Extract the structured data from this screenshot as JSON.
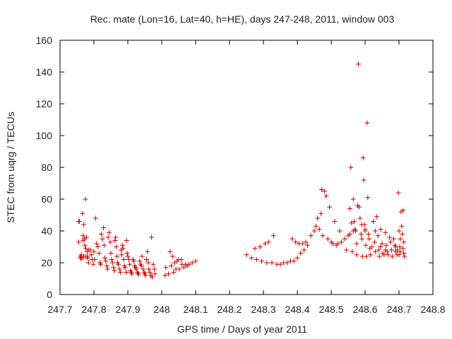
{
  "chart_data": {
    "type": "scatter",
    "title": "Rec. mate (Lon=16, Lat=40, h=HE), days 247-248, 2011, window 003",
    "xlabel": "GPS time / Days of year 2011",
    "ylabel": "STEC from uqrg / TECUs",
    "xlim": [
      247.7,
      248.8
    ],
    "ylim": [
      0,
      160
    ],
    "xticks": [
      247.7,
      247.8,
      247.9,
      248.0,
      248.1,
      248.2,
      248.3,
      248.4,
      248.5,
      248.6,
      248.7,
      248.8
    ],
    "xtick_labels": [
      "247.7",
      "247.8",
      "247.9",
      "248",
      "248.1",
      "248.2",
      "248.3",
      "248.4",
      "248.5",
      "248.6",
      "248.7",
      "248.8"
    ],
    "yticks": [
      0,
      20,
      40,
      60,
      80,
      100,
      120,
      140,
      160
    ],
    "ytick_labels": [
      "0",
      "20",
      "40",
      "60",
      "80",
      "100",
      "120",
      "140",
      "160"
    ],
    "grid": false,
    "marker": "+",
    "color": "#cc0000",
    "series": [
      {
        "points": [
          [
            247.755,
            46
          ],
          [
            247.757,
            46
          ],
          [
            247.76,
            24
          ],
          [
            247.762,
            23
          ],
          [
            247.763,
            25
          ],
          [
            247.766,
            51
          ],
          [
            247.768,
            37
          ],
          [
            247.77,
            44
          ],
          [
            247.755,
            33
          ],
          [
            247.768,
            34
          ],
          [
            247.772,
            35
          ],
          [
            247.775,
            60
          ],
          [
            247.778,
            36
          ],
          [
            247.78,
            27
          ],
          [
            247.782,
            23
          ],
          [
            247.784,
            20
          ],
          [
            247.76,
            23
          ],
          [
            247.765,
            23
          ],
          [
            247.77,
            24
          ],
          [
            247.775,
            24
          ],
          [
            247.78,
            24
          ],
          [
            247.773,
            31
          ],
          [
            247.776,
            29
          ],
          [
            247.785,
            28
          ],
          [
            247.79,
            28
          ],
          [
            247.792,
            25
          ],
          [
            247.795,
            22
          ],
          [
            247.798,
            19
          ],
          [
            247.8,
            27
          ],
          [
            247.802,
            22
          ],
          [
            247.805,
            48
          ],
          [
            247.808,
            32
          ],
          [
            247.812,
            30
          ],
          [
            247.815,
            26
          ],
          [
            247.818,
            20
          ],
          [
            247.82,
            19
          ],
          [
            247.822,
            38
          ],
          [
            247.825,
            35
          ],
          [
            247.828,
            42
          ],
          [
            247.83,
            31
          ],
          [
            247.832,
            23
          ],
          [
            247.835,
            21
          ],
          [
            247.838,
            18
          ],
          [
            247.84,
            16
          ],
          [
            247.842,
            36
          ],
          [
            247.845,
            39
          ],
          [
            247.848,
            33
          ],
          [
            247.85,
            26
          ],
          [
            247.852,
            22
          ],
          [
            247.855,
            20
          ],
          [
            247.858,
            17
          ],
          [
            247.86,
            15
          ],
          [
            247.862,
            34
          ],
          [
            247.864,
            36
          ],
          [
            247.866,
            30
          ],
          [
            247.868,
            24
          ],
          [
            247.87,
            20
          ],
          [
            247.872,
            19
          ],
          [
            247.875,
            16
          ],
          [
            247.878,
            14
          ],
          [
            247.88,
            28
          ],
          [
            247.882,
            25
          ],
          [
            247.884,
            31
          ],
          [
            247.886,
            29
          ],
          [
            247.888,
            22
          ],
          [
            247.89,
            18
          ],
          [
            247.892,
            17
          ],
          [
            247.895,
            14
          ],
          [
            247.896,
            34
          ],
          [
            247.898,
            26
          ],
          [
            247.9,
            24
          ],
          [
            247.903,
            22
          ],
          [
            247.905,
            19
          ],
          [
            247.908,
            15
          ],
          [
            247.91,
            14
          ],
          [
            247.912,
            13
          ],
          [
            247.915,
            22
          ],
          [
            247.918,
            21
          ],
          [
            247.92,
            18
          ],
          [
            247.923,
            17
          ],
          [
            247.925,
            16
          ],
          [
            247.928,
            14
          ],
          [
            247.93,
            13
          ],
          [
            247.932,
            13
          ],
          [
            247.935,
            21
          ],
          [
            247.938,
            19
          ],
          [
            247.94,
            18
          ],
          [
            247.942,
            24
          ],
          [
            247.945,
            16
          ],
          [
            247.948,
            14
          ],
          [
            247.95,
            13
          ],
          [
            247.952,
            12
          ],
          [
            247.955,
            22
          ],
          [
            247.958,
            27
          ],
          [
            247.96,
            20
          ],
          [
            247.962,
            16
          ],
          [
            247.965,
            14
          ],
          [
            247.968,
            12
          ],
          [
            247.97,
            36
          ],
          [
            247.972,
            11
          ],
          [
            247.975,
            19
          ],
          [
            247.978,
            16
          ],
          [
            247.98,
            13
          ],
          [
            248.01,
            12
          ],
          [
            248.012,
            17
          ],
          [
            248.02,
            13
          ],
          [
            248.025,
            27
          ],
          [
            248.028,
            18
          ],
          [
            248.032,
            24
          ],
          [
            248.035,
            14
          ],
          [
            248.038,
            20
          ],
          [
            248.042,
            16
          ],
          [
            248.045,
            21
          ],
          [
            248.05,
            22
          ],
          [
            248.052,
            16
          ],
          [
            248.058,
            22
          ],
          [
            248.06,
            19
          ],
          [
            248.065,
            17
          ],
          [
            248.07,
            19
          ],
          [
            248.075,
            18
          ],
          [
            248.08,
            19
          ],
          [
            248.09,
            20
          ],
          [
            248.1,
            21
          ],
          [
            248.25,
            25
          ],
          [
            248.265,
            23
          ],
          [
            248.275,
            29
          ],
          [
            248.28,
            22
          ],
          [
            248.29,
            30
          ],
          [
            248.295,
            21
          ],
          [
            248.305,
            32
          ],
          [
            248.31,
            20
          ],
          [
            248.315,
            33
          ],
          [
            248.325,
            20
          ],
          [
            248.33,
            37
          ],
          [
            248.34,
            19
          ],
          [
            248.35,
            19
          ],
          [
            248.36,
            20
          ],
          [
            248.37,
            20
          ],
          [
            248.38,
            21
          ],
          [
            248.385,
            35
          ],
          [
            248.39,
            21
          ],
          [
            248.395,
            33
          ],
          [
            248.4,
            23
          ],
          [
            248.405,
            32
          ],
          [
            248.41,
            26
          ],
          [
            248.415,
            32
          ],
          [
            248.42,
            28
          ],
          [
            248.425,
            33
          ],
          [
            248.43,
            31
          ],
          [
            248.44,
            37
          ],
          [
            248.45,
            40
          ],
          [
            248.455,
            43
          ],
          [
            248.46,
            48
          ],
          [
            248.465,
            41
          ],
          [
            248.47,
            51
          ],
          [
            248.472,
            66
          ],
          [
            248.475,
            37
          ],
          [
            248.48,
            65
          ],
          [
            248.485,
            62
          ],
          [
            248.49,
            35
          ],
          [
            248.495,
            55
          ],
          [
            248.5,
            33
          ],
          [
            248.505,
            32
          ],
          [
            248.51,
            46
          ],
          [
            248.515,
            31
          ],
          [
            248.52,
            32
          ],
          [
            248.525,
            40
          ],
          [
            248.53,
            33
          ],
          [
            248.54,
            35
          ],
          [
            248.545,
            28
          ],
          [
            248.55,
            37
          ],
          [
            248.555,
            54
          ],
          [
            248.558,
            80
          ],
          [
            248.56,
            45
          ],
          [
            248.562,
            27
          ],
          [
            248.565,
            60
          ],
          [
            248.568,
            46
          ],
          [
            248.57,
            41
          ],
          [
            248.572,
            40
          ],
          [
            248.575,
            25
          ],
          [
            248.578,
            56
          ],
          [
            248.58,
            145
          ],
          [
            248.582,
            55
          ],
          [
            248.585,
            48
          ],
          [
            248.588,
            38
          ],
          [
            248.59,
            35
          ],
          [
            248.592,
            24
          ],
          [
            248.594,
            86
          ],
          [
            248.596,
            72
          ],
          [
            248.598,
            44
          ],
          [
            248.6,
            41
          ],
          [
            248.602,
            31
          ],
          [
            248.604,
            24
          ],
          [
            248.606,
            108
          ],
          [
            248.608,
            61
          ],
          [
            248.61,
            38
          ],
          [
            248.612,
            35
          ],
          [
            248.614,
            29
          ],
          [
            248.616,
            25
          ],
          [
            248.62,
            30
          ],
          [
            248.624,
            46
          ],
          [
            248.628,
            33
          ],
          [
            248.63,
            27
          ],
          [
            248.634,
            49
          ],
          [
            248.638,
            37
          ],
          [
            248.64,
            28
          ],
          [
            248.642,
            24
          ],
          [
            248.646,
            41
          ],
          [
            248.65,
            32
          ],
          [
            248.652,
            26
          ],
          [
            248.656,
            25
          ],
          [
            248.66,
            39
          ],
          [
            248.662,
            31
          ],
          [
            248.665,
            27
          ],
          [
            248.668,
            25
          ],
          [
            248.672,
            36
          ],
          [
            248.675,
            33
          ],
          [
            248.678,
            28
          ],
          [
            248.68,
            24
          ],
          [
            248.684,
            35
          ],
          [
            248.688,
            31
          ],
          [
            248.69,
            27
          ],
          [
            248.694,
            25
          ],
          [
            248.698,
            64
          ],
          [
            248.7,
            40
          ],
          [
            248.702,
            30
          ],
          [
            248.704,
            27
          ],
          [
            248.706,
            52
          ],
          [
            248.708,
            43
          ],
          [
            248.71,
            38
          ],
          [
            248.712,
            29
          ],
          [
            248.714,
            26
          ],
          [
            248.716,
            24
          ],
          [
            248.712,
            53
          ],
          [
            248.714,
            33
          ],
          [
            248.704,
            35
          ],
          [
            248.7,
            25
          ],
          [
            248.695,
            28
          ],
          [
            248.69,
            30
          ],
          [
            248.66,
            28
          ],
          [
            248.645,
            30
          ],
          [
            248.63,
            40
          ],
          [
            248.6,
            40
          ],
          [
            248.59,
            44
          ],
          [
            248.575,
            32
          ],
          [
            248.565,
            40
          ],
          [
            248.555,
            38
          ]
        ]
      }
    ]
  }
}
